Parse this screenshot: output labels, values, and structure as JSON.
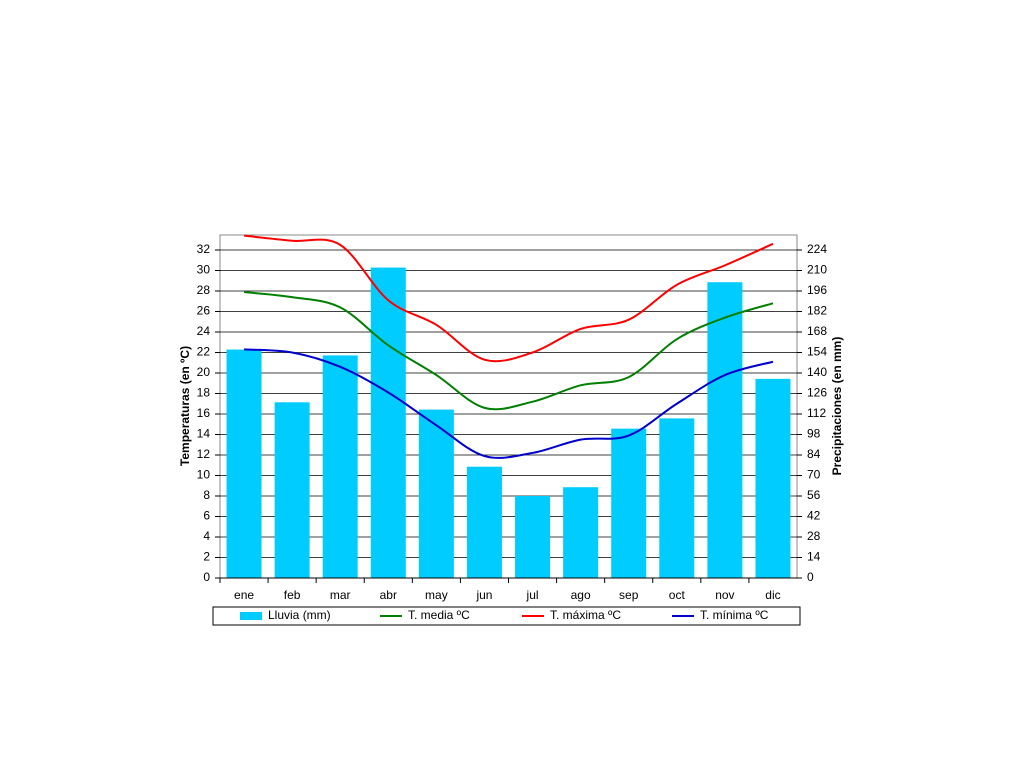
{
  "chart_data": {
    "type": "bar",
    "y_label": "Temperaturas (en ºC)",
    "y2_label": "Precipitaciones (en mm)",
    "categories": [
      "ene",
      "feb",
      "mar",
      "abr",
      "may",
      "jun",
      "jul",
      "ago",
      "sep",
      "oct",
      "nov",
      "dic"
    ],
    "series": [
      {
        "name": "Lluvia (mm)",
        "type": "bar",
        "axis": "y2",
        "color": "#00ccff",
        "values": [
          156,
          120,
          152,
          212,
          115,
          76,
          56,
          62,
          102,
          109,
          202,
          136
        ]
      },
      {
        "name": "T. media ºC",
        "type": "line",
        "color": "#008000",
        "values": [
          27.9,
          27.4,
          26.4,
          22.7,
          19.8,
          16.6,
          17.2,
          18.8,
          19.6,
          23.3,
          25.4,
          26.8
        ]
      },
      {
        "name": "T. máxima ºC",
        "type": "line",
        "color": "#ff0000",
        "values": [
          33.4,
          32.9,
          32.5,
          27.1,
          24.7,
          21.3,
          22.0,
          24.3,
          25.2,
          28.6,
          30.5,
          32.6
        ]
      },
      {
        "name": "T. mínima ºC",
        "type": "line",
        "color": "#0000cc",
        "values": [
          22.3,
          22.0,
          20.6,
          18.1,
          14.9,
          11.9,
          12.2,
          13.5,
          13.9,
          17.0,
          19.8,
          21.1
        ]
      }
    ],
    "ylim": [
      0,
      33.5
    ],
    "yticks": [
      0,
      2,
      4,
      6,
      8,
      10,
      12,
      14,
      16,
      18,
      20,
      22,
      24,
      26,
      28,
      30,
      32
    ],
    "y2lim": [
      0,
      234.5
    ],
    "y2ticks": [
      0,
      14,
      28,
      42,
      56,
      70,
      84,
      98,
      112,
      126,
      140,
      154,
      168,
      182,
      196,
      210,
      224
    ],
    "grid": true,
    "legend": "bottom"
  }
}
